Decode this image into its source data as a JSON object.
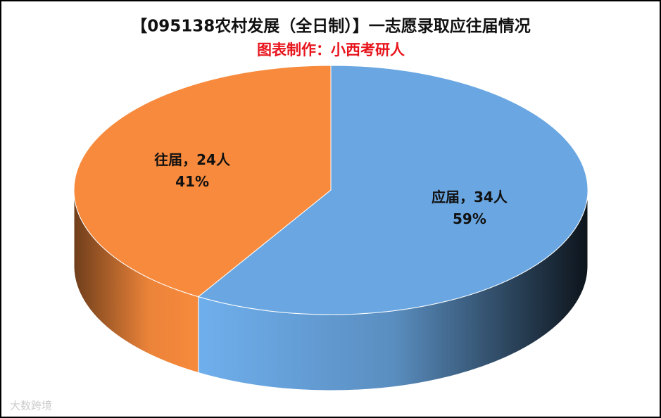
{
  "chart_data": {
    "type": "pie3d",
    "title": "【095138农村发展（全日制）】一志愿录取应往届情况",
    "subtitle": "图表制作：小西考研人",
    "values": [
      34,
      24
    ],
    "value_labels": [
      "应届，34人",
      "往届，24人"
    ],
    "percent_labels": [
      "59%",
      "41%"
    ],
    "colors": [
      "#6aa7e2",
      "#f78a3c"
    ],
    "watermark": "大数跨境"
  }
}
